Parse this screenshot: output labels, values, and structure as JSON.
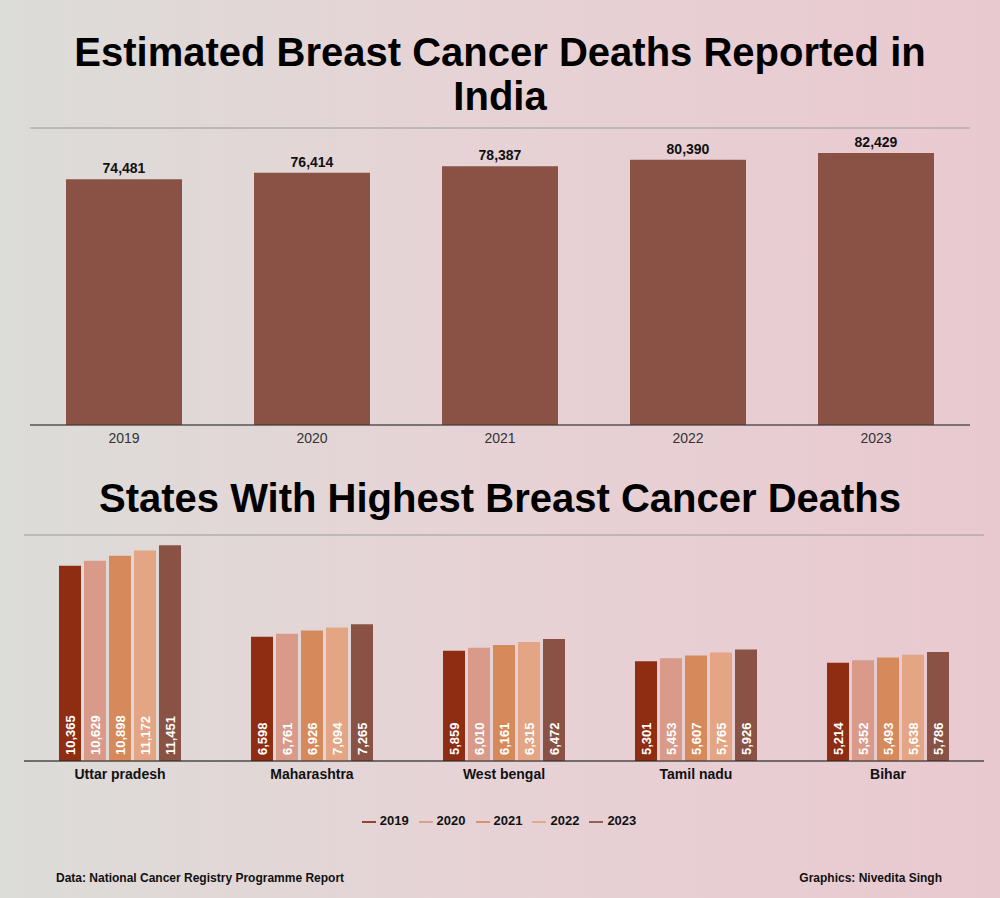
{
  "chart_data": [
    {
      "type": "bar",
      "title": "Estimated Breast Cancer Deaths Reported in India",
      "categories": [
        "2019",
        "2020",
        "2021",
        "2022",
        "2023"
      ],
      "values": [
        74481,
        76414,
        78387,
        80390,
        82429
      ],
      "value_labels": [
        "74,481",
        "76,414",
        "78,387",
        "80,390",
        "82,429"
      ],
      "color": "#8a5244",
      "ylim": [
        0,
        90000
      ],
      "yticks": [
        0,
        10000,
        20000,
        30000,
        40000,
        50000,
        60000,
        70000,
        80000,
        90000
      ],
      "grid": true,
      "data_labels": true,
      "tick_labels": "x"
    },
    {
      "type": "bar",
      "title": "States With Highest Breast Cancer Deaths",
      "categories": [
        "Uttar pradesh",
        "Maharashtra",
        "West bengal",
        "Tamil nadu",
        "Bihar"
      ],
      "series": [
        {
          "name": "2019",
          "color": "#8f2d13",
          "values": [
            10365,
            6598,
            5859,
            5301,
            5214
          ],
          "value_labels": [
            "10,365",
            "6,598",
            "5,859",
            "5,301",
            "5,214"
          ]
        },
        {
          "name": "2020",
          "color": "#d99a8a",
          "values": [
            10629,
            6761,
            6010,
            5453,
            5352
          ],
          "value_labels": [
            "10,629",
            "6,761",
            "6,010",
            "5,453",
            "5,352"
          ]
        },
        {
          "name": "2021",
          "color": "#d68a5c",
          "values": [
            10898,
            6926,
            6161,
            5607,
            5493
          ],
          "value_labels": [
            "10,898",
            "6,926",
            "6,161",
            "5,607",
            "5,493"
          ]
        },
        {
          "name": "2022",
          "color": "#e3a583",
          "values": [
            11172,
            7094,
            6315,
            5765,
            5638
          ],
          "value_labels": [
            "11,172",
            "7,094",
            "6,315",
            "5,765",
            "5,638"
          ]
        },
        {
          "name": "2023",
          "color": "#8a5244",
          "values": [
            11451,
            7265,
            6472,
            5926,
            5786
          ],
          "value_labels": [
            "11,451",
            "7,265",
            "6,472",
            "5,926",
            "5,786"
          ]
        }
      ],
      "ylim": [
        0,
        12000
      ],
      "yticks": [
        0,
        2000,
        4000,
        6000,
        8000,
        10000,
        12000
      ],
      "grid": true,
      "data_labels": true,
      "tick_labels": "x",
      "legend": "bottom"
    }
  ],
  "footer": {
    "source": "Data: National Cancer Registry Programme Report",
    "credit": "Graphics: Nivedita Singh"
  }
}
